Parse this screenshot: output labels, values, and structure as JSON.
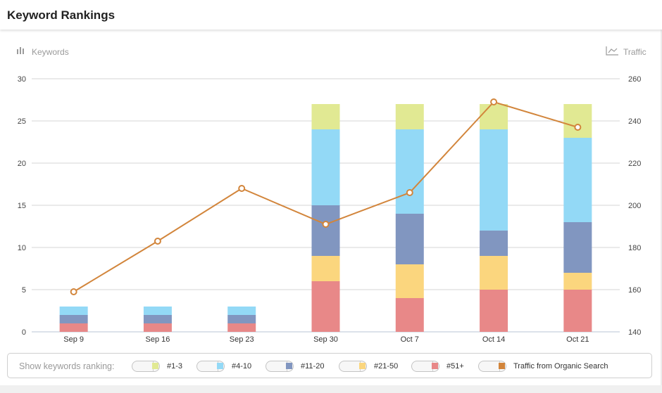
{
  "panel": {
    "title": "Keyword Rankings"
  },
  "axes": {
    "left_label": "Keywords",
    "right_label": "Traffic",
    "left_icon": "bar-chart-icon",
    "right_icon": "line-chart-icon"
  },
  "legend": {
    "caption": "Show keywords ranking:",
    "items": [
      {
        "label": "#1-3",
        "color": "#e1e993"
      },
      {
        "label": "#4-10",
        "color": "#93d9f6"
      },
      {
        "label": "#11-20",
        "color": "#8196c0"
      },
      {
        "label": "#21-50",
        "color": "#fbd67e"
      },
      {
        "label": "#51+",
        "color": "#e88888"
      },
      {
        "label": "Traffic from Organic Search",
        "color": "#d2853b"
      }
    ]
  },
  "chart_data": {
    "type": "bar",
    "stacked": true,
    "categories": [
      "Sep 9",
      "Sep 16",
      "Sep 23",
      "Sep 30",
      "Oct 7",
      "Oct 14",
      "Oct 21"
    ],
    "series": [
      {
        "name": "#51+",
        "color": "#e88888",
        "values": [
          1,
          1,
          1,
          6,
          4,
          5,
          5
        ]
      },
      {
        "name": "#21-50",
        "color": "#fbd67e",
        "values": [
          0,
          0,
          0,
          3,
          4,
          4,
          2
        ]
      },
      {
        "name": "#11-20",
        "color": "#8196c0",
        "values": [
          1,
          1,
          1,
          6,
          6,
          3,
          6
        ]
      },
      {
        "name": "#4-10",
        "color": "#93d9f6",
        "values": [
          1,
          1,
          1,
          9,
          10,
          12,
          10
        ]
      },
      {
        "name": "#1-3",
        "color": "#e1e993",
        "values": [
          0,
          0,
          0,
          3,
          3,
          3,
          4
        ]
      }
    ],
    "line_series": {
      "name": "Traffic from Organic Search",
      "color": "#d2853b",
      "axis": "right",
      "values": [
        159,
        183,
        208,
        191,
        206,
        249,
        237
      ]
    },
    "ylim": [
      0,
      30
    ],
    "y_ticks": [
      "0",
      "5",
      "10",
      "15",
      "20",
      "25",
      "30"
    ],
    "y2lim": [
      140,
      260
    ],
    "y2_ticks": [
      "140",
      "160",
      "180",
      "200",
      "220",
      "240",
      "260"
    ],
    "ylabel": "Keywords",
    "y2label": "Traffic",
    "grid": true,
    "legend_position": "bottom"
  }
}
